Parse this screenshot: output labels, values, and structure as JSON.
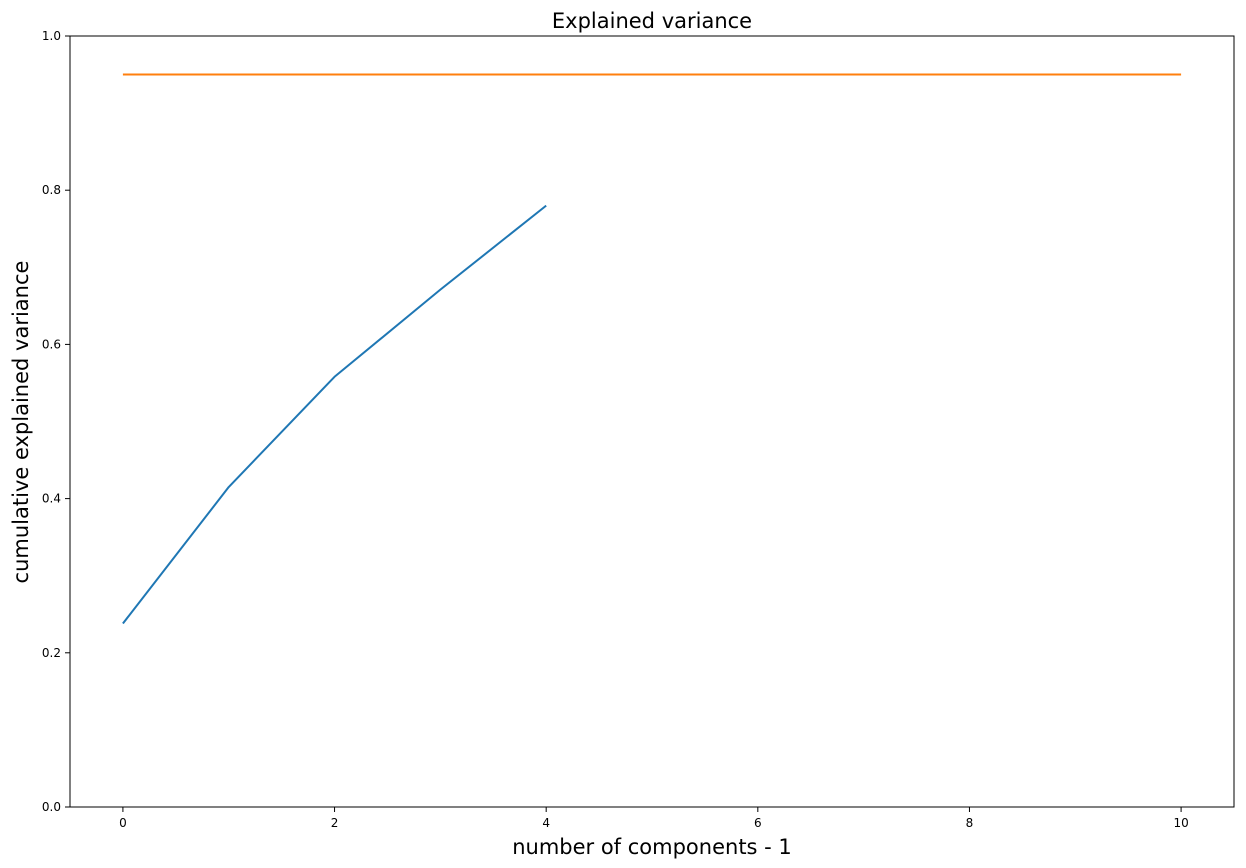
{
  "chart_data": {
    "type": "line",
    "title": "Explained variance",
    "xlabel": "number of components - 1",
    "ylabel": "cumulative explained variance",
    "xlim": [
      -0.5,
      10.5
    ],
    "ylim": [
      0.0,
      1.0
    ],
    "x_ticks": [
      0,
      2,
      4,
      6,
      8,
      10
    ],
    "x_tick_labels": [
      "0",
      "2",
      "4",
      "6",
      "8",
      "10"
    ],
    "y_ticks": [
      0.0,
      0.2,
      0.4,
      0.6,
      0.8,
      1.0
    ],
    "y_tick_labels": [
      "0.0",
      "0.2",
      "0.4",
      "0.6",
      "0.8",
      "1.0"
    ],
    "grid": false,
    "series": [
      {
        "color": "#1f77b4",
        "x": [
          0,
          1,
          2,
          3,
          4
        ],
        "y": [
          0.238,
          0.415,
          0.558,
          0.671,
          0.78
        ]
      },
      {
        "color": "#ff7f0e",
        "x": [
          0,
          10
        ],
        "y": [
          0.95,
          0.95
        ]
      }
    ]
  }
}
